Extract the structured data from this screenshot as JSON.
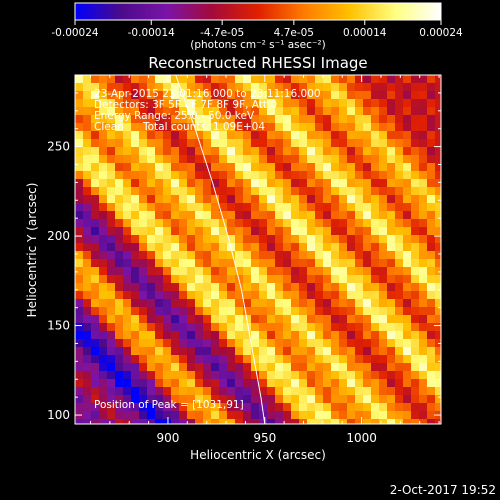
{
  "colorbar": {
    "ticks": [
      "-0.00024",
      "-0.00014",
      "-4.7e-05",
      "4.7e-05",
      "0.00014",
      "0.00024"
    ],
    "tick_values": [
      -0.00024,
      -0.00014,
      -4.7e-05,
      4.7e-05,
      0.00014,
      0.00024
    ],
    "range": [
      -0.00024,
      0.00024
    ],
    "unit_label": "(photons cm⁻² s⁻¹ asec⁻²)",
    "colors": [
      "#0000ff",
      "#4b0a8a",
      "#7a14a8",
      "#a40a3a",
      "#e02000",
      "#ff7a00",
      "#ffc000",
      "#ffff80",
      "#ffffff"
    ]
  },
  "annotations": {
    "time_range": "23-Apr-2015 23:01:16.000 to 23:11:16.000",
    "detectors": "Detectors: 3F 5F 6F 7F 8F 9F, Att 0",
    "energy_range": "Energy Range: 25.0 - 50.0 keV",
    "algorithm": "Clean",
    "total_counts": "Total counts: 1.09E+04",
    "peak": "Position of Peak = [1031,91]"
  },
  "footer": {
    "timestamp": "2-Oct-2017 19:52"
  },
  "chart_data": {
    "type": "heatmap",
    "title": "Reconstructed RHESSI Image",
    "xlabel": "Heliocentric X (arcsec)",
    "ylabel": "Heliocentric Y (arcsec)",
    "xlim": [
      852,
      1041
    ],
    "ylim": [
      95,
      290
    ],
    "xticks": [
      900,
      950,
      1000
    ],
    "yticks": [
      100,
      150,
      200,
      250
    ],
    "grid": false,
    "peak_position": [
      1031,
      91
    ],
    "limb_curve": [
      [
        904,
        290
      ],
      [
        914,
        260
      ],
      [
        923,
        230
      ],
      [
        931,
        200
      ],
      [
        938,
        170
      ],
      [
        943,
        140
      ],
      [
        948,
        110
      ],
      [
        950,
        95
      ]
    ],
    "ridges": [
      {
        "y_at_x_852": 250,
        "slope": -1.2,
        "amplitude": 1.0
      },
      {
        "y_at_x_852": 290,
        "slope": -1.2,
        "amplitude": 0.9
      },
      {
        "y_at_x_852": 345,
        "slope": -1.2,
        "amplitude": 1.0
      },
      {
        "y_at_x_852": 185,
        "slope": -1.2,
        "amplitude": 0.7
      },
      {
        "y_at_x_852": 395,
        "slope": -1.2,
        "amplitude": 0.95
      },
      {
        "y_at_x_852": 440,
        "slope": -1.2,
        "amplitude": 0.8
      }
    ],
    "troughs": [
      {
        "y_at_x_852": 215,
        "slope": -1.2,
        "amplitude": -0.6
      },
      {
        "y_at_x_852": 150,
        "slope": -1.2,
        "amplitude": -1.0
      },
      {
        "y_at_x_852": 105,
        "slope": -1.2,
        "amplitude": -0.5
      }
    ]
  }
}
